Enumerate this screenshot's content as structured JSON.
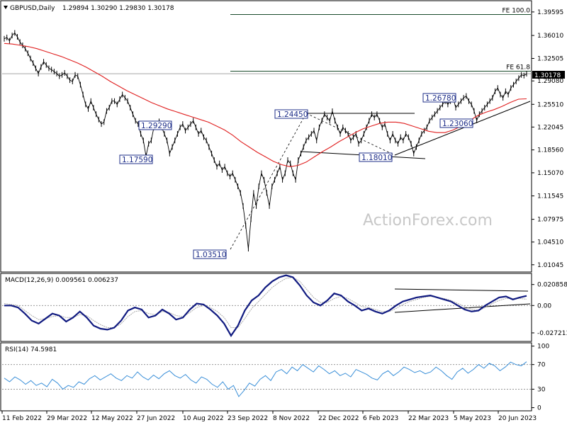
{
  "chart_data": {
    "type": "line",
    "symbol": "GBPUSD,Daily",
    "ohlc_header": "1.29894 1.30290 1.29830 1.30178",
    "last_price_label": "1.30178",
    "watermark": "ActionForex.com",
    "main_panel": {
      "y_ticks": [
        "1.39595",
        "1.36010",
        "1.32505",
        "1.29080",
        "1.25510",
        "1.22045",
        "1.18560",
        "1.15070",
        "1.11545",
        "1.07975",
        "1.04510",
        "1.01045"
      ],
      "y_tick_values": [
        1.39595,
        1.3601,
        1.32505,
        1.2908,
        1.2551,
        1.22045,
        1.1856,
        1.1507,
        1.11545,
        1.07975,
        1.0451,
        1.01045
      ],
      "ylim": [
        1.0005,
        1.412
      ],
      "series": [
        {
          "name": "price",
          "values": [
            1.355,
            1.357,
            1.352,
            1.36,
            1.364,
            1.358,
            1.35,
            1.345,
            1.34,
            1.333,
            1.325,
            1.318,
            1.31,
            1.302,
            1.312,
            1.32,
            1.315,
            1.31,
            1.308,
            1.305,
            1.302,
            1.298,
            1.3,
            1.303,
            1.298,
            1.292,
            1.29,
            1.3,
            1.298,
            1.285,
            1.27,
            1.255,
            1.248,
            1.26,
            1.25,
            1.24,
            1.232,
            1.225,
            1.228,
            1.245,
            1.25,
            1.26,
            1.26,
            1.255,
            1.263,
            1.27,
            1.265,
            1.26,
            1.25,
            1.24,
            1.23,
            1.225,
            1.21,
            1.2,
            1.176,
            1.195,
            1.2,
            1.22,
            1.225,
            1.229,
            1.22,
            1.21,
            1.2,
            1.18,
            1.19,
            1.2,
            1.21,
            1.22,
            1.225,
            1.215,
            1.22,
            1.225,
            1.23,
            1.22,
            1.21,
            1.215,
            1.205,
            1.2,
            1.19,
            1.18,
            1.17,
            1.16,
            1.165,
            1.155,
            1.16,
            1.15,
            1.145,
            1.15,
            1.14,
            1.13,
            1.12,
            1.1,
            1.07,
            1.0351,
            1.08,
            1.12,
            1.1,
            1.13,
            1.15,
            1.14,
            1.12,
            1.1,
            1.13,
            1.14,
            1.15,
            1.16,
            1.14,
            1.15,
            1.17,
            1.165,
            1.15,
            1.14,
            1.17,
            1.18,
            1.19,
            1.2,
            1.205,
            1.21,
            1.215,
            1.2,
            1.22,
            1.23,
            1.24,
            1.235,
            1.23,
            1.2445,
            1.23,
            1.22,
            1.21,
            1.22,
            1.215,
            1.21,
            1.2,
            1.205,
            1.21,
            1.195,
            1.2,
            1.21,
            1.22,
            1.23,
            1.24,
            1.235,
            1.24,
            1.23,
            1.22,
            1.225,
            1.21,
            1.2,
            1.21,
            1.2,
            1.195,
            1.205,
            1.2,
            1.21,
            1.205,
            1.195,
            1.1801,
            1.19,
            1.2,
            1.21,
            1.215,
            1.22,
            1.23,
            1.235,
            1.24,
            1.245,
            1.25,
            1.255,
            1.26,
            1.255,
            1.26,
            1.265,
            1.25,
            1.255,
            1.26,
            1.265,
            1.2678,
            1.26,
            1.255,
            1.245,
            1.2306,
            1.24,
            1.245,
            1.25,
            1.255,
            1.26,
            1.265,
            1.275,
            1.28,
            1.27,
            1.265,
            1.275,
            1.27,
            1.28,
            1.285,
            1.29,
            1.295,
            1.3,
            1.29894,
            1.30178
          ]
        },
        {
          "name": "moving_average",
          "values": [
            1.348,
            1.347,
            1.345,
            1.343,
            1.34,
            1.336,
            1.332,
            1.328,
            1.323,
            1.318,
            1.312,
            1.305,
            1.298,
            1.29,
            1.283,
            1.276,
            1.27,
            1.264,
            1.258,
            1.253,
            1.248,
            1.244,
            1.24,
            1.236,
            1.232,
            1.228,
            1.222,
            1.216,
            1.208,
            1.198,
            1.19,
            1.182,
            1.175,
            1.168,
            1.163,
            1.16,
            1.162,
            1.167,
            1.175,
            1.183,
            1.19,
            1.198,
            1.205,
            1.212,
            1.218,
            1.222,
            1.226,
            1.228,
            1.228,
            1.226,
            1.222,
            1.218,
            1.214,
            1.212,
            1.212,
            1.216,
            1.222,
            1.23,
            1.238,
            1.243,
            1.247,
            1.252,
            1.258,
            1.263,
            1.2635
          ]
        }
      ],
      "levels": [
        {
          "label": "FE 100.0",
          "value": 1.392
        },
        {
          "label": "FE 61.8",
          "value": 1.3056
        }
      ],
      "annotations": [
        {
          "label": "1.29290",
          "value": 1.2929
        },
        {
          "label": "1.17590",
          "value": 1.1759
        },
        {
          "label": "1.03510",
          "value": 1.0351
        },
        {
          "label": "1.24450",
          "value": 1.2445
        },
        {
          "label": "1.18010",
          "value": 1.1801
        },
        {
          "label": "1.26780",
          "value": 1.2678
        },
        {
          "label": "1.23060",
          "value": 1.2306
        }
      ]
    },
    "macd_panel": {
      "label": "MACD(12,26,9) 0.009561 0.006237",
      "y_ticks": [
        "0.020858",
        "0.00",
        "-0.027213"
      ],
      "y_tick_values": [
        0.020858,
        0.0,
        -0.027213
      ],
      "ylim": [
        -0.035,
        0.0305
      ],
      "series": [
        {
          "name": "macd",
          "values": [
            0.0,
            0.0,
            -0.002,
            -0.008,
            -0.015,
            -0.018,
            -0.013,
            -0.008,
            -0.01,
            -0.016,
            -0.012,
            -0.006,
            -0.012,
            -0.02,
            -0.023,
            -0.024,
            -0.022,
            -0.015,
            -0.005,
            -0.002,
            -0.004,
            -0.012,
            -0.01,
            -0.004,
            -0.008,
            -0.014,
            -0.012,
            -0.004,
            0.002,
            0.001,
            -0.004,
            -0.01,
            -0.018,
            -0.03,
            -0.02,
            -0.005,
            0.005,
            0.01,
            0.018,
            0.024,
            0.028,
            0.03,
            0.028,
            0.02,
            0.01,
            0.003,
            0.0,
            0.005,
            0.012,
            0.01,
            0.004,
            0.0,
            -0.005,
            -0.003,
            -0.006,
            -0.008,
            -0.005,
            0.0,
            0.004,
            0.006,
            0.008,
            0.009,
            0.01,
            0.008,
            0.006,
            0.004,
            0.0,
            -0.004,
            -0.006,
            -0.005,
            0.0,
            0.004,
            0.008,
            0.009,
            0.006,
            0.008,
            0.009561
          ]
        },
        {
          "name": "signal",
          "values": [
            0.002,
            0.001,
            0.0,
            -0.005,
            -0.01,
            -0.014,
            -0.013,
            -0.011,
            -0.01,
            -0.012,
            -0.012,
            -0.009,
            -0.01,
            -0.015,
            -0.019,
            -0.022,
            -0.022,
            -0.018,
            -0.011,
            -0.006,
            -0.005,
            -0.008,
            -0.009,
            -0.006,
            -0.007,
            -0.01,
            -0.011,
            -0.007,
            -0.002,
            0.0,
            -0.002,
            -0.006,
            -0.012,
            -0.022,
            -0.022,
            -0.013,
            -0.003,
            0.004,
            0.011,
            0.018,
            0.023,
            0.027,
            0.028,
            0.024,
            0.016,
            0.008,
            0.003,
            0.003,
            0.007,
            0.009,
            0.007,
            0.003,
            -0.001,
            -0.002,
            -0.004,
            -0.006,
            -0.006,
            -0.003,
            0.001,
            0.004,
            0.006,
            0.008,
            0.009,
            0.008,
            0.007,
            0.005,
            0.002,
            -0.001,
            -0.004,
            -0.005,
            -0.002,
            0.002,
            0.005,
            0.007,
            0.007,
            0.007,
            0.006237
          ]
        }
      ]
    },
    "rsi_panel": {
      "label": "RSI(14) 74.5981",
      "y_ticks": [
        "100",
        "70",
        "30",
        "0"
      ],
      "y_tick_values": [
        100,
        70,
        30,
        0
      ],
      "ylim": [
        -4,
        103
      ],
      "values": [
        48,
        42,
        50,
        45,
        38,
        44,
        36,
        40,
        34,
        46,
        40,
        30,
        36,
        33,
        42,
        38,
        47,
        52,
        45,
        50,
        55,
        48,
        44,
        52,
        48,
        58,
        50,
        45,
        53,
        47,
        55,
        60,
        52,
        48,
        54,
        45,
        40,
        50,
        46,
        38,
        33,
        42,
        30,
        36,
        18,
        28,
        40,
        35,
        46,
        52,
        44,
        58,
        62,
        55,
        66,
        60,
        70,
        64,
        58,
        68,
        62,
        55,
        60,
        52,
        56,
        50,
        62,
        58,
        54,
        48,
        45,
        55,
        60,
        52,
        58,
        66,
        62,
        57,
        60,
        55,
        58,
        66,
        60,
        52,
        46,
        58,
        64,
        56,
        62,
        70,
        64,
        72,
        68,
        60,
        66,
        74,
        70,
        68,
        74.5981
      ]
    },
    "x_ticks": [
      "11 Feb 2022",
      "29 Mar 2022",
      "12 May 2022",
      "27 Jun 2022",
      "10 Aug 2022",
      "23 Sep 2022",
      "8 Nov 2022",
      "22 Dec 2022",
      "6 Feb 2023",
      "22 Mar 2023",
      "5 May 2023",
      "20 Jun 2023"
    ]
  }
}
